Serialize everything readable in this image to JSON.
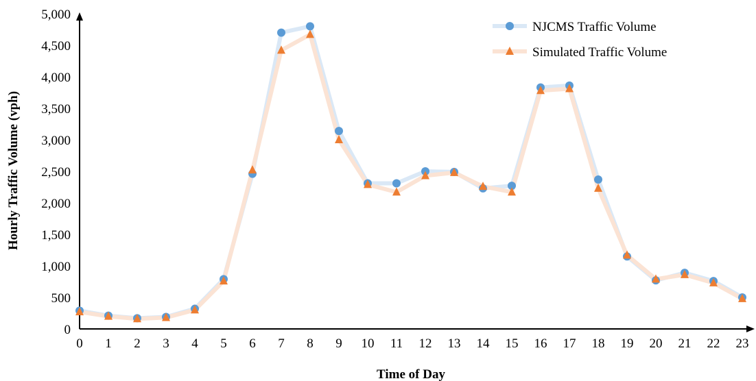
{
  "chart_data": {
    "type": "line",
    "xlabel": "Time of Day",
    "ylabel": "Hourly Traffic Volume (vph)",
    "ylim": [
      0,
      5000
    ],
    "yticks": [
      0,
      500,
      1000,
      1500,
      2000,
      2500,
      3000,
      3500,
      4000,
      4500,
      5000
    ],
    "ytick_labels": [
      "0",
      "500",
      "1,000",
      "1,500",
      "2,000",
      "2,500",
      "3,000",
      "3,500",
      "4,000",
      "4,500",
      "5,000"
    ],
    "categories": [
      "0",
      "1",
      "2",
      "3",
      "4",
      "5",
      "6",
      "7",
      "8",
      "9",
      "10",
      "11",
      "12",
      "13",
      "14",
      "15",
      "16",
      "17",
      "18",
      "19",
      "20",
      "21",
      "22",
      "23"
    ],
    "legend_position": "top-right",
    "grid": false,
    "series": [
      {
        "name": "NJCMS Traffic Volume",
        "marker": "circle",
        "marker_color": "#5b9bd5",
        "line_color": "#dae8f6",
        "values": [
          290,
          210,
          170,
          190,
          320,
          790,
          2460,
          4700,
          4800,
          3140,
          2310,
          2310,
          2500,
          2490,
          2230,
          2270,
          3830,
          3860,
          2370,
          1150,
          770,
          890,
          760,
          500
        ]
      },
      {
        "name": "Simulated Traffic Volume",
        "marker": "triangle",
        "marker_color": "#ed7d31",
        "line_color": "#fbe3d4",
        "values": [
          270,
          200,
          160,
          180,
          300,
          760,
          2520,
          4420,
          4670,
          3000,
          2290,
          2170,
          2430,
          2480,
          2260,
          2170,
          3780,
          3810,
          2230,
          1170,
          790,
          860,
          730,
          480
        ]
      }
    ]
  }
}
